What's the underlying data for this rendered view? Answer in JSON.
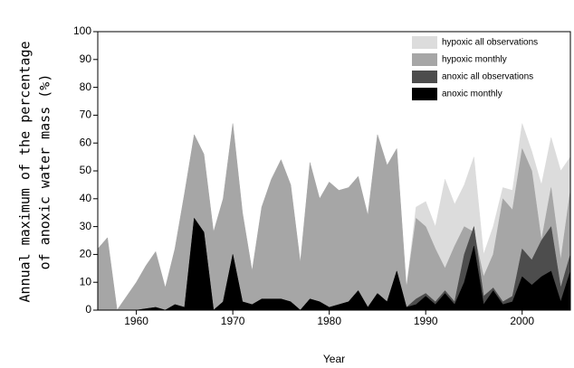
{
  "chart_data": {
    "type": "area",
    "ylabel": [
      "Annual maximum of the percentage",
      "of anoxic water mass (%)"
    ],
    "xlabel": "Year",
    "x": [
      1956,
      1957,
      1958,
      1959,
      1960,
      1961,
      1962,
      1963,
      1964,
      1965,
      1966,
      1967,
      1968,
      1969,
      1970,
      1971,
      1972,
      1973,
      1974,
      1975,
      1976,
      1977,
      1978,
      1979,
      1980,
      1981,
      1982,
      1983,
      1984,
      1985,
      1986,
      1987,
      1988,
      1989,
      1990,
      1991,
      1992,
      1993,
      1994,
      1995,
      1996,
      1997,
      1998,
      1999,
      2000,
      2001,
      2002,
      2003,
      2004,
      2005
    ],
    "series": [
      {
        "name": "hypoxic all observations",
        "color": "#dcdcdc",
        "values": [
          22,
          26,
          0,
          5,
          10,
          16,
          21,
          8,
          22,
          42,
          63,
          56,
          28,
          40,
          67,
          35,
          14,
          37,
          47,
          54,
          45,
          17,
          53,
          40,
          46,
          43,
          44,
          48,
          34,
          63,
          52,
          58,
          8,
          37,
          39,
          30,
          47,
          38,
          45,
          55,
          20,
          30,
          44,
          43,
          67,
          57,
          45,
          62,
          50,
          55
        ]
      },
      {
        "name": "hypoxic monthly",
        "color": "#a6a6a6",
        "values": [
          22,
          26,
          0,
          5,
          10,
          16,
          21,
          8,
          22,
          42,
          63,
          56,
          28,
          40,
          67,
          35,
          14,
          37,
          47,
          54,
          45,
          17,
          53,
          40,
          46,
          43,
          44,
          48,
          34,
          63,
          52,
          58,
          8,
          33,
          30,
          22,
          15,
          23,
          30,
          28,
          12,
          20,
          40,
          36,
          58,
          50,
          25,
          44,
          18,
          43
        ]
      },
      {
        "name": "anoxic all observations",
        "color": "#4d4d4d",
        "values": [
          0,
          0,
          0,
          0,
          0,
          0.5,
          1,
          0,
          2,
          1,
          33,
          28,
          0,
          3,
          20,
          3,
          2,
          4,
          4,
          4,
          3,
          0,
          4,
          3,
          1,
          2,
          3,
          7,
          1,
          6,
          3,
          14,
          1,
          4,
          6,
          3,
          7,
          3,
          20,
          30,
          5,
          8,
          3,
          5,
          22,
          18,
          25,
          30,
          8,
          20
        ]
      },
      {
        "name": "anoxic monthly",
        "color": "#000000",
        "values": [
          0,
          0,
          0,
          0,
          0,
          0.5,
          1,
          0,
          2,
          1,
          33,
          28,
          0,
          3,
          20,
          3,
          2,
          4,
          4,
          4,
          3,
          0,
          4,
          3,
          1,
          2,
          3,
          7,
          1,
          6,
          3,
          14,
          1,
          2,
          5,
          2,
          6,
          2,
          10,
          23,
          2,
          7,
          2,
          3,
          12,
          9,
          12,
          14,
          3,
          14
        ]
      }
    ],
    "xlim": [
      1956,
      2005
    ],
    "xticks": [
      1960,
      1970,
      1980,
      1990,
      2000
    ],
    "ylim": [
      0,
      100
    ],
    "yticks": [
      0,
      10,
      20,
      30,
      40,
      50,
      60,
      70,
      80,
      90,
      100
    ],
    "legend": "upper right"
  }
}
